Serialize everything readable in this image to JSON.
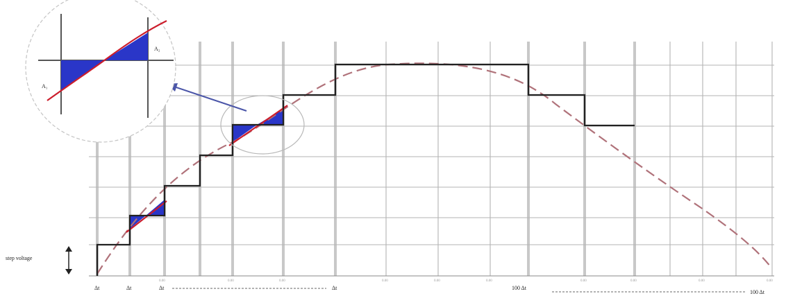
{
  "labels": {
    "step_voltage": "step voltage",
    "area_left": "A₁",
    "area_right": "A₂",
    "tick_first": "Δt",
    "tick_second": "Δt",
    "tick_third": "Δt",
    "tick_mid": "Δt",
    "tick_right_a": "100 Δt",
    "tick_right_b": "100 Δt"
  },
  "colors": {
    "fill": "#2a36c8",
    "curve": "#cc1d2c",
    "arrow": "#4a55a8"
  }
}
